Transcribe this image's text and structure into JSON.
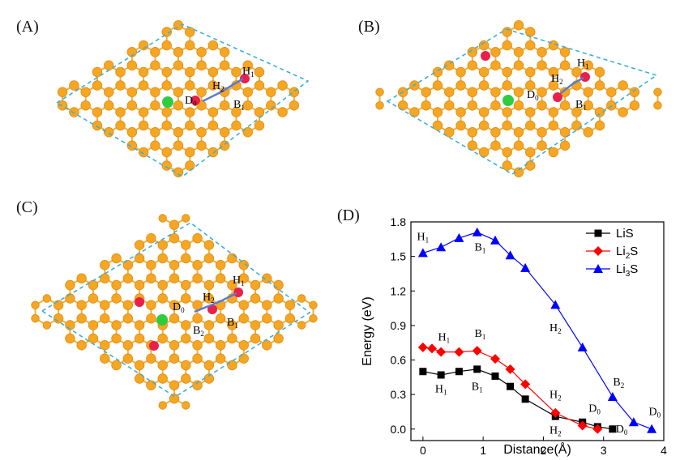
{
  "panels": {
    "A": {
      "label": "(A)",
      "site_labels": {
        "H1": [
          "H",
          "1"
        ],
        "H2": [
          "H",
          "2"
        ],
        "D0": [
          "D",
          "0"
        ],
        "B1": [
          "B",
          "1"
        ]
      }
    },
    "B": {
      "label": "(B)",
      "site_labels": {
        "H1": [
          "H",
          "1"
        ],
        "H2": [
          "H",
          "2"
        ],
        "D0": [
          "D",
          "0"
        ],
        "B1": [
          "B",
          "1"
        ]
      }
    },
    "C": {
      "label": "(C)",
      "site_labels": {
        "H1": [
          "H",
          "1"
        ],
        "H2": [
          "H",
          "2"
        ],
        "D0": [
          "D",
          "0"
        ],
        "B1": [
          "B",
          "1"
        ],
        "B2": [
          "B",
          "2"
        ]
      }
    },
    "D": {
      "label": "(D)"
    }
  },
  "colors": {
    "atom": "#f5a623",
    "atom_edge": "#e08a10",
    "bond": "#f0b040",
    "cell": "#3ab0d8",
    "li": "#e8204a",
    "s": "#2ecc40",
    "arrow": "#5b7bd0"
  },
  "chart_data": {
    "type": "line",
    "xlabel": "Distance(Å)",
    "ylabel": "Energy (eV)",
    "xlim": [
      -0.2,
      4
    ],
    "ylim": [
      -0.1,
      1.8
    ],
    "xticks": [
      "0",
      "1",
      "2",
      "3",
      "4"
    ],
    "yticks": [
      "0.0",
      "0.3",
      "0.6",
      "0.9",
      "1.2",
      "1.5",
      "1.8"
    ],
    "legend_position": "top-right",
    "series": [
      {
        "name": "LiS",
        "name_parts": [
          "LiS",
          ""
        ],
        "color": "#000000",
        "marker": "square",
        "x": [
          0,
          0.3,
          0.6,
          0.9,
          1.2,
          1.45,
          1.7,
          2.2,
          2.65,
          2.9,
          3.15
        ],
        "y": [
          0.5,
          0.47,
          0.5,
          0.52,
          0.46,
          0.37,
          0.26,
          0.11,
          0.06,
          0.02,
          0.0
        ],
        "annotations": [
          {
            "text": [
              "H",
              "1"
            ],
            "x": 0.3,
            "y": 0.32
          },
          {
            "text": [
              "B",
              "1"
            ],
            "x": 0.9,
            "y": 0.34
          },
          {
            "text": [
              "H",
              "2"
            ],
            "x": 2.2,
            "y": -0.04
          },
          {
            "text": [
              "D",
              "0"
            ],
            "x": 3.3,
            "y": -0.03
          }
        ]
      },
      {
        "name": "Li2S",
        "name_parts": [
          "Li",
          "2",
          "S"
        ],
        "color": "#ff0000",
        "marker": "diamond",
        "x": [
          0,
          0.15,
          0.3,
          0.6,
          0.9,
          1.2,
          1.45,
          1.7,
          2.2,
          2.65,
          2.9
        ],
        "y": [
          0.71,
          0.7,
          0.67,
          0.67,
          0.68,
          0.61,
          0.52,
          0.39,
          0.14,
          0.03,
          0.0
        ],
        "annotations": [
          {
            "text": [
              "H",
              "1"
            ],
            "x": 0.35,
            "y": 0.77
          },
          {
            "text": [
              "B",
              "1"
            ],
            "x": 0.95,
            "y": 0.8
          },
          {
            "text": [
              "H",
              "2"
            ],
            "x": 2.2,
            "y": 0.27
          },
          {
            "text": [
              "D",
              "0"
            ],
            "x": 2.85,
            "y": 0.15
          }
        ]
      },
      {
        "name": "Li3S",
        "name_parts": [
          "Li",
          "3",
          "S"
        ],
        "color": "#0000ff",
        "marker": "triangle",
        "x": [
          0,
          0.3,
          0.6,
          0.9,
          1.2,
          1.45,
          1.7,
          2.2,
          2.65,
          3.15,
          3.5,
          3.8
        ],
        "y": [
          1.53,
          1.58,
          1.66,
          1.71,
          1.64,
          1.51,
          1.4,
          1.08,
          0.71,
          0.28,
          0.06,
          0.0
        ],
        "annotations": [
          {
            "text": [
              "H",
              "1"
            ],
            "x": 0.0,
            "y": 1.64
          },
          {
            "text": [
              "B",
              "1"
            ],
            "x": 0.95,
            "y": 1.55
          },
          {
            "text": [
              "H",
              "2"
            ],
            "x": 2.2,
            "y": 0.85
          },
          {
            "text": [
              "B",
              "2"
            ],
            "x": 3.25,
            "y": 0.38
          },
          {
            "text": [
              "D",
              "0"
            ],
            "x": 3.85,
            "y": 0.12
          }
        ]
      }
    ]
  }
}
